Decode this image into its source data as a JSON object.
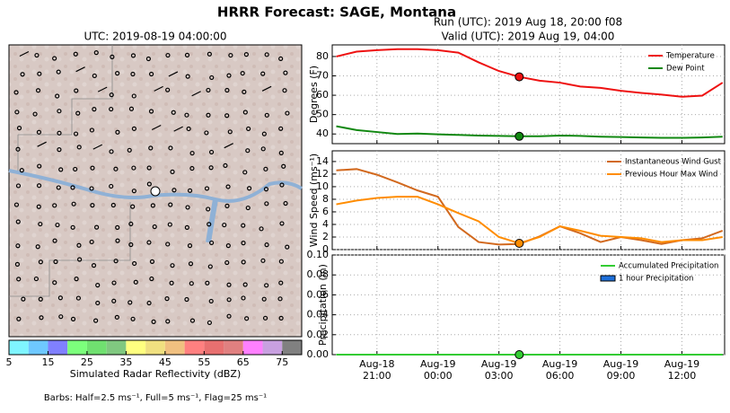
{
  "title": "HRRR Forecast: SAGE, Montana",
  "run": "Run (UTC): 2019 Aug 18, 20:00 f08",
  "valid": "Valid (UTC): 2019 Aug 19, 04:00",
  "chart_data": [
    {
      "type": "map",
      "title": "UTC: 2019-08-19 04:00:00",
      "colorbar": {
        "label": "Simulated Radar Reflectivity (dBZ)",
        "xlim": [
          5,
          80
        ],
        "xticks": [
          5,
          15,
          25,
          35,
          45,
          55,
          65,
          75
        ],
        "colors": [
          "#7ff5ff",
          "#6ec8ff",
          "#8080ff",
          "#7cff7c",
          "#70e070",
          "#80c880",
          "#ffff80",
          "#f0e080",
          "#f0c080",
          "#ff8080",
          "#e87070",
          "#e08080",
          "#ff80ff",
          "#c8a0e0",
          "#808080"
        ]
      },
      "note": "Barbs: Half=2.5 ms⁻¹, Full=5 ms⁻¹, Flag=25 ms⁻¹"
    },
    {
      "type": "line",
      "ylabel": "Degrees (F)",
      "ylim": [
        35,
        86
      ],
      "yticks": [
        40,
        50,
        60,
        70,
        80
      ],
      "grid": true,
      "legend": "upper right",
      "marker_x": 7,
      "series": [
        {
          "name": "Temperature",
          "color": "#ee1111",
          "marker": true,
          "values": [
            80,
            82.5,
            83.3,
            83.8,
            83.8,
            83.3,
            82,
            77,
            72.5,
            69.5,
            67.5,
            66.5,
            64.5,
            63.8,
            62.3,
            61.2,
            60.3,
            59.2,
            59.8,
            66.5
          ]
        },
        {
          "name": "Dew Point",
          "color": "#118811",
          "marker": true,
          "values": [
            44,
            42,
            41,
            40,
            40.2,
            39.8,
            39.5,
            39.2,
            39,
            38.8,
            38.8,
            39.2,
            39,
            38.6,
            38.4,
            38.2,
            38,
            38,
            38.2,
            38.6
          ]
        }
      ]
    },
    {
      "type": "line",
      "ylabel": "Wind Speed (ms⁻¹)",
      "ylim": [
        0,
        15.7
      ],
      "yticks": [
        0,
        2,
        4,
        6,
        8,
        10,
        12,
        14
      ],
      "grid": true,
      "legend": "upper right",
      "marker_x": 7,
      "series": [
        {
          "name": "Instantaneous Wind Gust",
          "color": "#d2691e",
          "marker": false,
          "values": [
            12.6,
            12.8,
            11.9,
            10.7,
            9.4,
            8.4,
            3.6,
            1.2,
            0.8,
            0.9,
            2.1,
            3.7,
            2.6,
            1.2,
            2.0,
            1.5,
            0.9,
            1.5,
            1.8,
            3.0
          ]
        },
        {
          "name": "Previous Hour Max Wind",
          "color": "#ff8c00",
          "marker": true,
          "values": [
            7.2,
            7.8,
            8.2,
            8.4,
            8.4,
            7.2,
            5.8,
            4.5,
            2,
            1,
            2,
            3.7,
            3,
            2.2,
            2,
            1.8,
            1.2,
            1.5,
            1.5,
            2
          ]
        }
      ]
    },
    {
      "type": "line",
      "ylabel": "Precipitation (in)",
      "ylim": [
        0,
        0.1
      ],
      "grid": true,
      "legend": "upper right",
      "marker_x": 7,
      "yticks": [
        {
          "value": 0,
          "label": "0.00"
        },
        {
          "value": 0.02,
          "label": "0.02"
        },
        {
          "value": 0.04,
          "label": "0.04"
        },
        {
          "value": 0.06,
          "label": "0.06"
        },
        {
          "value": 0.08,
          "label": "0.08"
        },
        {
          "value": 0.1,
          "label": "0.10"
        }
      ],
      "x": [
        -2,
        -1,
        0,
        1,
        2,
        3,
        4,
        5,
        6,
        7,
        8,
        9,
        10,
        11,
        12,
        13,
        14,
        15,
        16,
        17
      ],
      "xlim": [
        -2.2,
        17.1
      ],
      "xticks": [
        {
          "value": 0,
          "label": "Aug-18\n21:00"
        },
        {
          "value": 3,
          "label": "Aug-19\n00:00"
        },
        {
          "value": 6,
          "label": "Aug-19\n03:00"
        },
        {
          "value": 9,
          "label": "Aug-19\n06:00"
        },
        {
          "value": 12,
          "label": "Aug-19\n09:00"
        },
        {
          "value": 15,
          "label": "Aug-19\n12:00"
        }
      ],
      "series": [
        {
          "name": "Accumulated Precipitation",
          "color": "#33cc33",
          "marker": true,
          "values": [
            0,
            0,
            0,
            0,
            0,
            0,
            0,
            0,
            0,
            0,
            0,
            0,
            0,
            0,
            0,
            0,
            0,
            0,
            0,
            0
          ]
        },
        {
          "name": "1 hour Precipitation",
          "type": "bar",
          "color": "#1e6fd9",
          "marker": false,
          "values": [
            0,
            0,
            0,
            0,
            0,
            0,
            0,
            0,
            0,
            0,
            0,
            0,
            0,
            0,
            0,
            0,
            0,
            0,
            0,
            0
          ]
        }
      ]
    }
  ]
}
